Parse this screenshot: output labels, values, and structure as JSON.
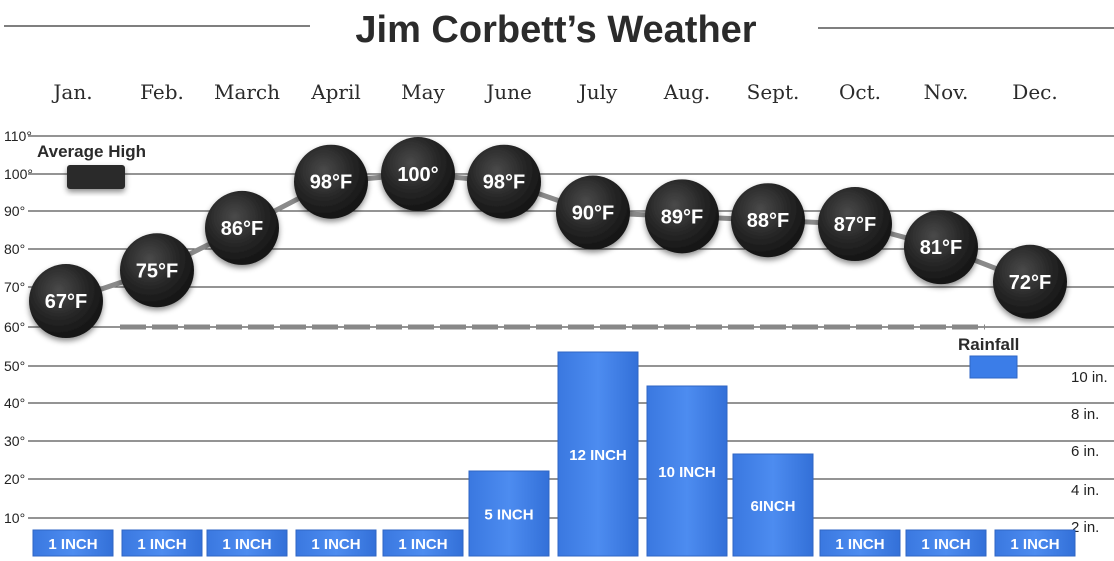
{
  "title": "Jim Corbett’s Weather",
  "months": [
    "Jan.",
    "Feb.",
    "March",
    "April",
    "May",
    "June",
    "July",
    "Aug.",
    "Sept.",
    "Oct.",
    "Nov.",
    "Dec."
  ],
  "legend": {
    "high_label": "Average High",
    "rain_label": "Rainfall"
  },
  "colors": {
    "temp_marker": "#222222",
    "rain_bar": "#3b7de8",
    "line": "#888888",
    "grid": "#444444"
  },
  "chart_data": [
    {
      "type": "line",
      "title": "Average High",
      "categories": [
        "Jan.",
        "Feb.",
        "March",
        "April",
        "May",
        "June",
        "July",
        "Aug.",
        "Sept.",
        "Oct.",
        "Nov.",
        "Dec."
      ],
      "series": [
        {
          "name": "Average High",
          "values": [
            67,
            75,
            86,
            98,
            100,
            98,
            90,
            89,
            88,
            87,
            81,
            72
          ]
        }
      ],
      "point_labels": [
        "67°F",
        "75°F",
        "86°F",
        "98°F",
        "100°",
        "98°F",
        "90°F",
        "89°F",
        "88°F",
        "87°F",
        "81°F",
        "72°F"
      ],
      "y_ticks": [
        "110°",
        "100°",
        "90°",
        "80°",
        "70°",
        "60°",
        "50°",
        "40°",
        "30°",
        "20°",
        "10°"
      ],
      "ylim": [
        0,
        110
      ],
      "legend": "top-left"
    },
    {
      "type": "bar",
      "title": "Rainfall",
      "categories": [
        "Jan.",
        "Feb.",
        "March",
        "April",
        "May",
        "June",
        "July",
        "Aug.",
        "Sept.",
        "Oct.",
        "Nov.",
        "Dec."
      ],
      "series": [
        {
          "name": "Rainfall",
          "values": [
            1,
            1,
            1,
            1,
            1,
            5,
            12,
            10,
            6,
            1,
            1,
            1
          ]
        }
      ],
      "bar_labels": [
        "1 INCH",
        "1 INCH",
        "1 INCH",
        "1 INCH",
        "1 INCH",
        "5 INCH",
        "12 INCH",
        "10 INCH",
        "6INCH",
        "1 INCH",
        "1 INCH",
        "1 INCH"
      ],
      "y_ticks": [
        "10 in.",
        "8 in.",
        "6 in.",
        "4 in.",
        "2 in."
      ],
      "legend": "right"
    }
  ]
}
